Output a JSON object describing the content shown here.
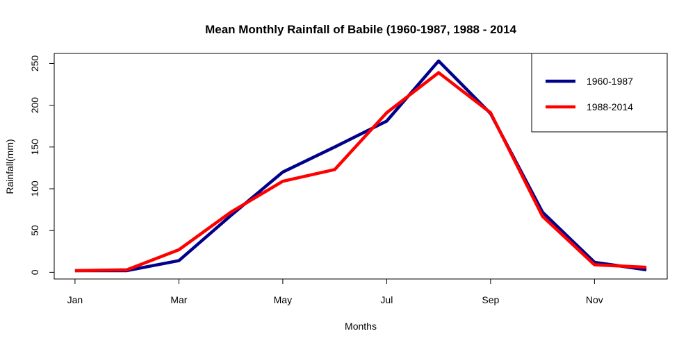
{
  "chart_data": {
    "type": "line",
    "title": "Mean Monthly Rainfall of Babile (1960-1987, 1988 - 2014",
    "xlabel": "Months",
    "ylabel": "Rainfall(mm)",
    "x_tick_labels": [
      "Jan",
      "Mar",
      "May",
      "Jul",
      "Sep",
      "Nov"
    ],
    "x_tick_positions": [
      1,
      3,
      5,
      7,
      9,
      11
    ],
    "y_ticks": [
      0,
      50,
      100,
      150,
      200,
      250
    ],
    "xlim": [
      0.6,
      12.4
    ],
    "ylim": [
      -8,
      262
    ],
    "x": [
      1,
      2,
      3,
      4,
      5,
      6,
      7,
      8,
      9,
      10,
      11,
      12
    ],
    "series": [
      {
        "name": "1960-1987",
        "color": "#00008B",
        "values": [
          2,
          2,
          14,
          68,
          120,
          150,
          181,
          253,
          190,
          72,
          12,
          3
        ]
      },
      {
        "name": "1988-2014",
        "color": "#FF0000",
        "values": [
          2,
          3,
          27,
          72,
          109,
          123,
          191,
          239,
          191,
          67,
          9,
          6
        ]
      }
    ],
    "legend_position": "top-right",
    "grid": false
  }
}
